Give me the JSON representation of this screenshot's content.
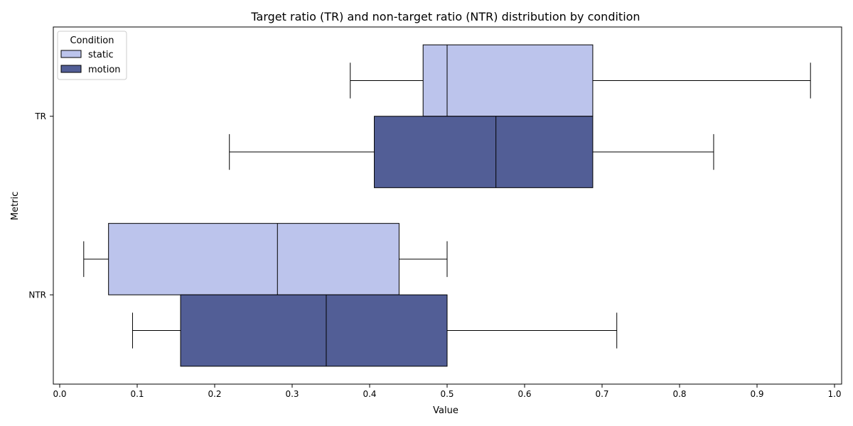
{
  "chart_data": {
    "type": "boxplot",
    "orientation": "horizontal",
    "title": "Target ratio (TR) and non-target ratio (NTR) distribution by condition",
    "xlabel": "Value",
    "ylabel": "Metric",
    "xlim": [
      0.0,
      1.0
    ],
    "xticks": [
      "0.0",
      "0.1",
      "0.2",
      "0.3",
      "0.4",
      "0.5",
      "0.6",
      "0.7",
      "0.8",
      "0.9",
      "1.0"
    ],
    "categories": [
      "TR",
      "NTR"
    ],
    "grid": false,
    "legend": {
      "title": "Condition",
      "placement": "top-left",
      "entries": [
        "static",
        "motion"
      ]
    },
    "series": [
      {
        "name": "static",
        "color": "#bcc4ec",
        "boxes": [
          {
            "category": "TR",
            "whisker_low": 0.375,
            "q1": 0.469,
            "median": 0.5,
            "q3": 0.688,
            "whisker_high": 0.969
          },
          {
            "category": "NTR",
            "whisker_low": 0.031,
            "q1": 0.063,
            "median": 0.281,
            "q3": 0.438,
            "whisker_high": 0.5
          }
        ]
      },
      {
        "name": "motion",
        "color": "#525e96",
        "boxes": [
          {
            "category": "TR",
            "whisker_low": 0.219,
            "q1": 0.406,
            "median": 0.563,
            "q3": 0.688,
            "whisker_high": 0.844
          },
          {
            "category": "NTR",
            "whisker_low": 0.094,
            "q1": 0.156,
            "median": 0.344,
            "q3": 0.5,
            "whisker_high": 0.719
          }
        ]
      }
    ]
  }
}
